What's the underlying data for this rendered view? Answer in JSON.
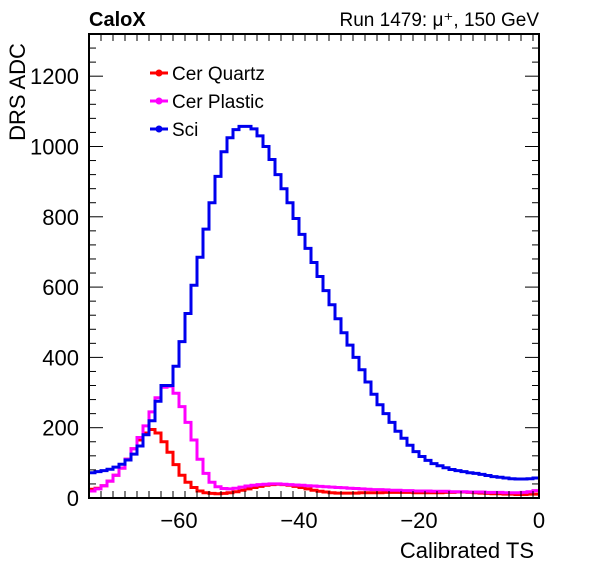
{
  "chart_data": {
    "type": "line",
    "experiment": "CaloX",
    "run_info": "Run 1479:   μ⁺, 150 GeV",
    "xlabel": "Calibrated TS",
    "ylabel": "DRS ADC",
    "xlim": [
      -75,
      0
    ],
    "ylim": [
      0,
      1320
    ],
    "x_ticks": [
      -60,
      -40,
      -20,
      0
    ],
    "x_tick_labels": [
      "−60",
      "−40",
      "−20",
      "0"
    ],
    "y_ticks": [
      0,
      200,
      400,
      600,
      800,
      1000,
      1200
    ],
    "y_tick_labels": [
      "0",
      "200",
      "400",
      "600",
      "800",
      "1000",
      "1200"
    ],
    "legend_position": "top-left",
    "x": [
      -75,
      -74,
      -73,
      -72,
      -71,
      -70,
      -69,
      -68,
      -67,
      -66,
      -65,
      -64,
      -63,
      -62,
      -61,
      -60,
      -59,
      -58,
      -57,
      -56,
      -55,
      -54,
      -53,
      -52,
      -51,
      -50,
      -49,
      -48,
      -47,
      -46,
      -45,
      -44,
      -43,
      -42,
      -41,
      -40,
      -39,
      -38,
      -37,
      -36,
      -35,
      -34,
      -33,
      -32,
      -31,
      -30,
      -29,
      -28,
      -27,
      -26,
      -25,
      -24,
      -23,
      -22,
      -21,
      -20,
      -19,
      -18,
      -17,
      -16,
      -15,
      -14,
      -13,
      -12,
      -11,
      -10,
      -9,
      -8,
      -7,
      -6,
      -5,
      -4,
      -3,
      -2,
      -1
    ],
    "series": [
      {
        "name": "Cer Quartz",
        "color": "#ff0000",
        "values": [
          25,
          28,
          35,
          48,
          65,
          85,
          110,
          140,
          165,
          185,
          195,
          185,
          160,
          130,
          95,
          65,
          45,
          30,
          20,
          15,
          13,
          12,
          13,
          15,
          18,
          22,
          26,
          30,
          33,
          36,
          38,
          39,
          38,
          36,
          33,
          30,
          26,
          22,
          19,
          17,
          15,
          14,
          14,
          14,
          14,
          15,
          15,
          15,
          15,
          16,
          16,
          16,
          16,
          16,
          15,
          15,
          15,
          15,
          15,
          16,
          16,
          17,
          17,
          16,
          15,
          14,
          13,
          12,
          12,
          11,
          11,
          10,
          10,
          11,
          11
        ]
      },
      {
        "name": "Cer Plastic",
        "color": "#ff00ff",
        "values": [
          20,
          26,
          35,
          48,
          65,
          85,
          110,
          140,
          172,
          205,
          245,
          285,
          315,
          318,
          298,
          260,
          215,
          165,
          110,
          70,
          45,
          32,
          27,
          26,
          28,
          31,
          34,
          36,
          38,
          39,
          40,
          40,
          39,
          38,
          37,
          36,
          35,
          34,
          33,
          32,
          31,
          30,
          29,
          28,
          27,
          26,
          25,
          24,
          24,
          23,
          22,
          22,
          21,
          21,
          20,
          20,
          20,
          19,
          19,
          19,
          18,
          18,
          18,
          17,
          17,
          17,
          16,
          16,
          16,
          15,
          15,
          15,
          16,
          18,
          21
        ]
      },
      {
        "name": "Sci",
        "color": "#0000ee",
        "values": [
          72,
          75,
          78,
          82,
          88,
          96,
          108,
          125,
          148,
          180,
          220,
          275,
          320,
          320,
          375,
          445,
          525,
          605,
          685,
          765,
          840,
          915,
          985,
          1025,
          1048,
          1057,
          1057,
          1050,
          1030,
          1000,
          963,
          920,
          880,
          840,
          795,
          750,
          710,
          670,
          630,
          590,
          550,
          510,
          470,
          435,
          400,
          365,
          330,
          295,
          265,
          240,
          215,
          190,
          170,
          150,
          132,
          118,
          107,
          98,
          92,
          86,
          81,
          78,
          75,
          72,
          70,
          67,
          64,
          61,
          59,
          57,
          55,
          54,
          54,
          55,
          57
        ]
      }
    ]
  }
}
